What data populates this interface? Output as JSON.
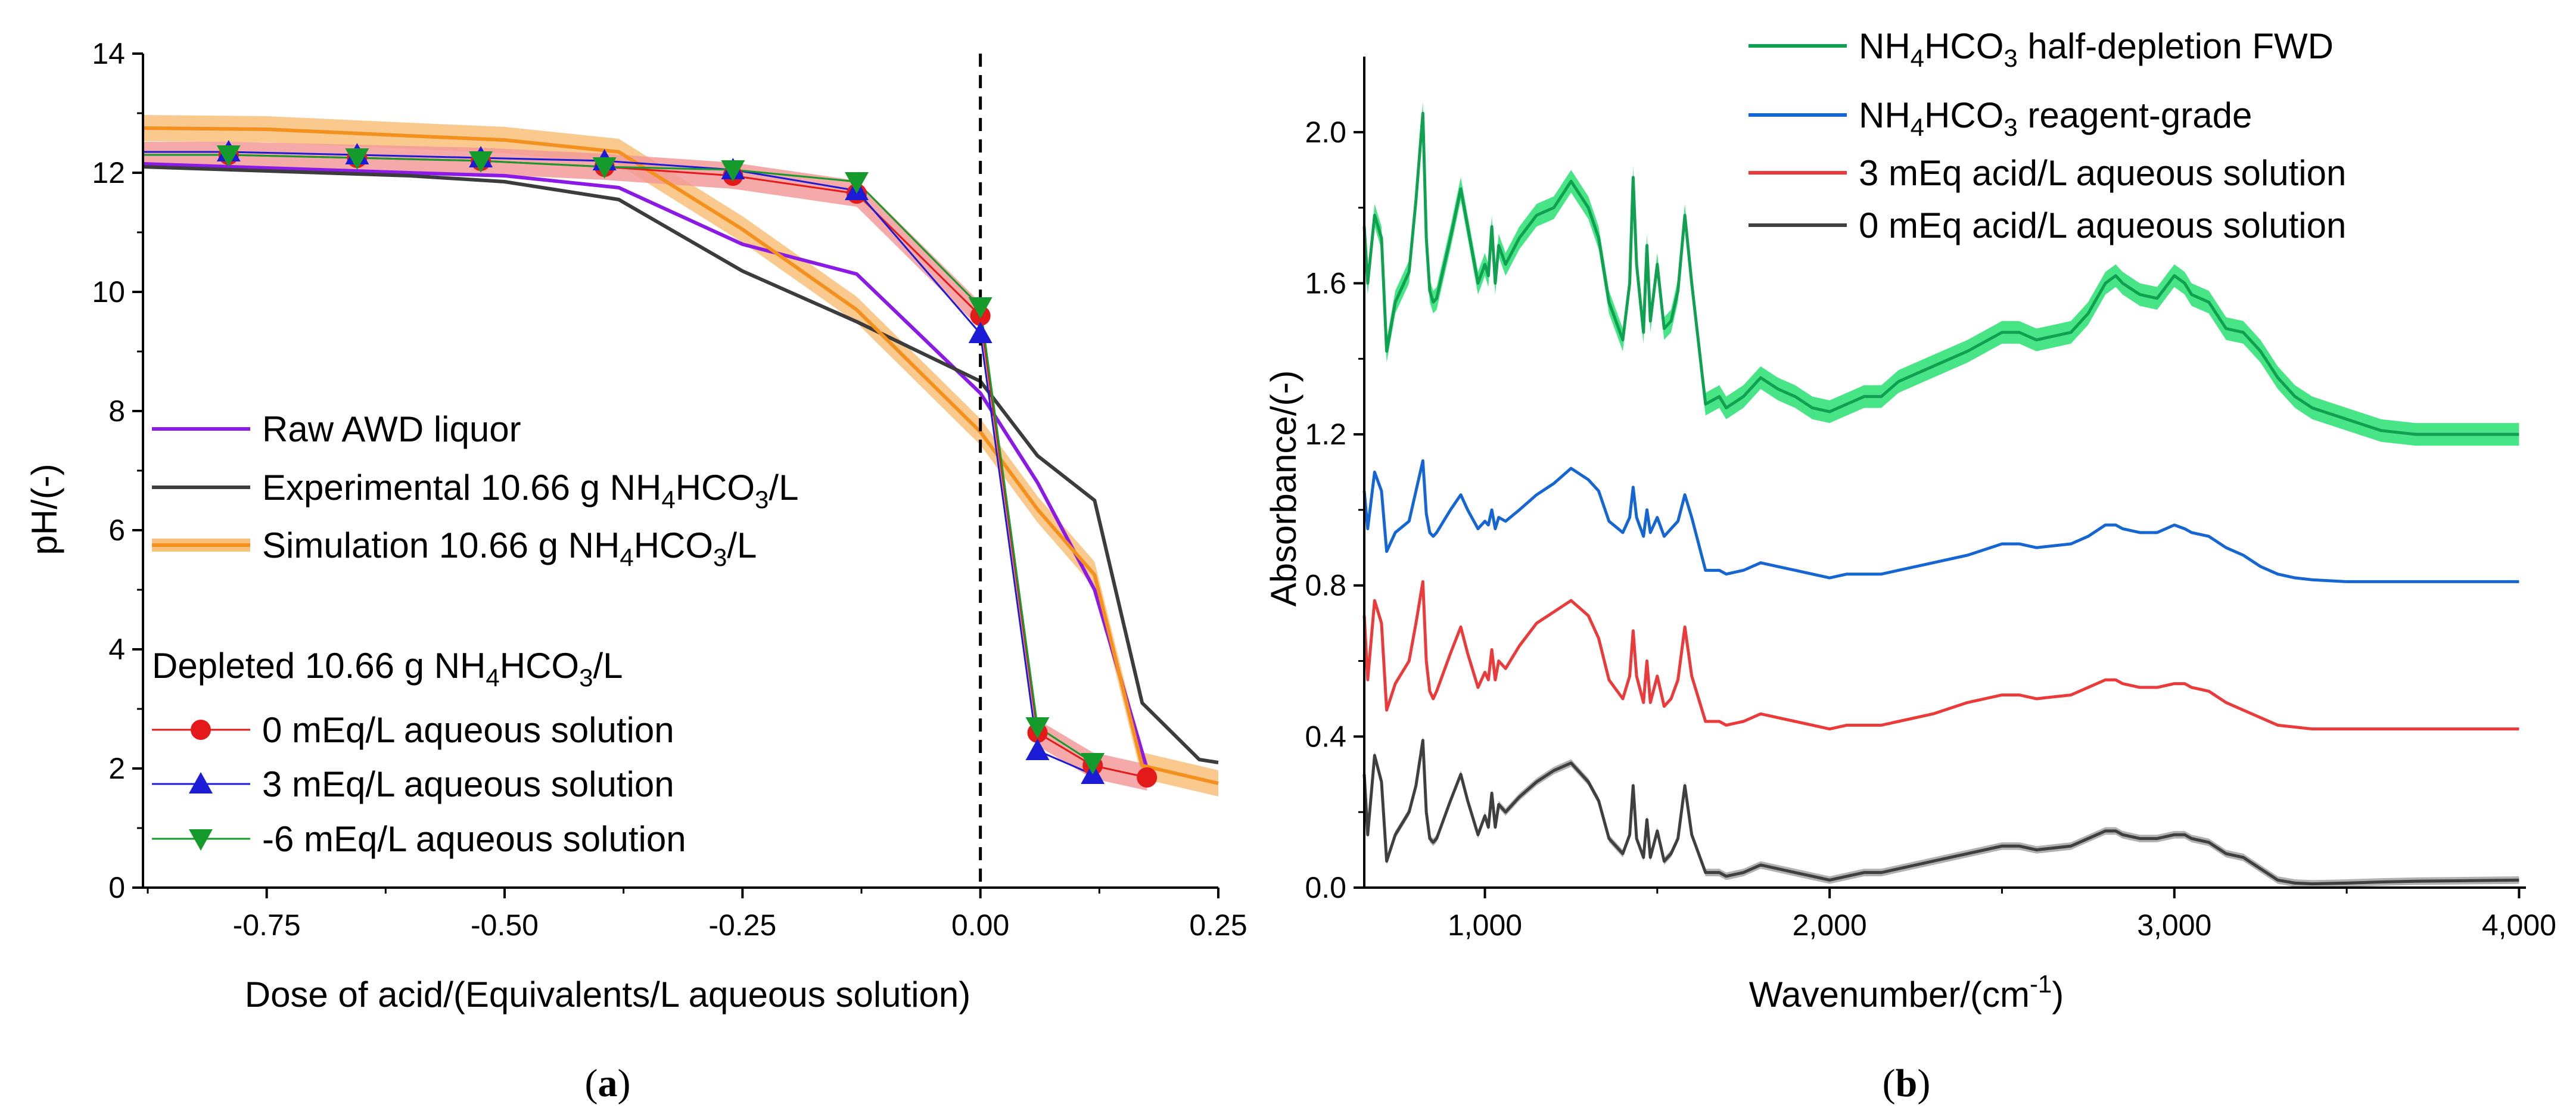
{
  "chart_data": [
    {
      "type": "line",
      "panel": "a",
      "xlabel": "Dose of acid/(Equivalents/L aqueous solution)",
      "ylabel": "pH/(-)",
      "xlim": [
        -0.88,
        0.25
      ],
      "ylim": [
        0,
        14
      ],
      "xticks": [
        -0.75,
        -0.5,
        -0.25,
        0.0,
        0.25
      ],
      "xtick_labels": [
        "-0.75",
        "-0.50",
        "-0.25",
        "0.00",
        "0.25"
      ],
      "yticks": [
        0,
        2,
        4,
        6,
        8,
        10,
        12,
        14
      ],
      "ytick_labels": [
        "0",
        "2",
        "4",
        "6",
        "8",
        "10",
        "12",
        "14"
      ],
      "vertical_reference_line": {
        "x": 0.0,
        "style": "dashed"
      },
      "grid": false,
      "series": [
        {
          "name": "Raw AWD liquor",
          "color": "#8b1ae6",
          "marker": "none",
          "x": [
            -0.88,
            -0.6,
            -0.5,
            -0.38,
            -0.25,
            -0.13,
            0.0,
            0.06,
            0.12,
            0.175
          ],
          "y": [
            12.15,
            12.0,
            11.95,
            11.75,
            10.8,
            10.3,
            8.3,
            6.8,
            5.0,
            2.0
          ]
        },
        {
          "name": "Experimental 10.66 g NH4HCO3/L",
          "color": "#3c3c3c",
          "marker": "none",
          "x": [
            -0.88,
            -0.6,
            -0.5,
            -0.38,
            -0.25,
            -0.13,
            0.0,
            0.06,
            0.12,
            0.17,
            0.23,
            0.25
          ],
          "y": [
            12.1,
            11.95,
            11.85,
            11.55,
            10.35,
            9.5,
            8.5,
            7.25,
            6.5,
            3.1,
            2.15,
            2.1
          ]
        },
        {
          "name": "Simulation 10.66 g NH4HCO3/L",
          "color": "#f4901e",
          "marker": "none",
          "band": 0.22,
          "x": [
            -0.88,
            -0.75,
            -0.6,
            -0.5,
            -0.38,
            -0.25,
            -0.13,
            0.0,
            0.06,
            0.12,
            0.17,
            0.25
          ],
          "y": [
            12.75,
            12.73,
            12.62,
            12.55,
            12.35,
            11.05,
            9.7,
            7.65,
            6.35,
            5.25,
            2.05,
            1.75
          ]
        },
        {
          "name": "0 mEq/L aqueous solution",
          "color": "#e41a1a",
          "marker": "circle",
          "band": 0.22,
          "x": [
            -0.88,
            -0.79,
            -0.655,
            -0.525,
            -0.395,
            -0.26,
            -0.13,
            0.0,
            0.06,
            0.118,
            0.175
          ],
          "y": [
            12.3,
            12.3,
            12.25,
            12.2,
            12.1,
            11.95,
            11.65,
            9.6,
            2.6,
            2.05,
            1.85
          ]
        },
        {
          "name": "3 mEq/L aqueous solution",
          "color": "#1c1cd6",
          "marker": "triangle-up",
          "x": [
            -0.88,
            -0.79,
            -0.655,
            -0.525,
            -0.395,
            -0.26,
            -0.13,
            0.0,
            0.06,
            0.118
          ],
          "y": [
            12.35,
            12.35,
            12.3,
            12.25,
            12.2,
            12.05,
            11.7,
            9.3,
            2.3,
            1.9
          ]
        },
        {
          "name": "-6 mEq/L aqueous solution",
          "color": "#159a2c",
          "marker": "triangle-down",
          "x": [
            -0.88,
            -0.79,
            -0.655,
            -0.525,
            -0.395,
            -0.26,
            -0.13,
            0.0,
            0.06,
            0.118
          ],
          "y": [
            12.3,
            12.3,
            12.25,
            12.2,
            12.1,
            12.05,
            11.85,
            9.75,
            2.7,
            2.1
          ]
        }
      ],
      "legend": {
        "placement": "center-left",
        "group_title": "Depleted 10.66 g NH4HCO3/L"
      }
    },
    {
      "type": "line",
      "panel": "b",
      "xlabel": "Wavenumber/(cm-1)",
      "ylabel": "Absorbance/(-)",
      "xlim": [
        650,
        4020
      ],
      "ylim": [
        0,
        2.2
      ],
      "xticks": [
        1000,
        2000,
        3000,
        4000
      ],
      "xtick_labels": [
        "1,000",
        "2,000",
        "3,000",
        "4,000"
      ],
      "yticks": [
        0.0,
        0.4,
        0.8,
        1.2,
        1.6,
        2.0
      ],
      "ytick_labels": [
        "0.0",
        "0.4",
        "0.8",
        "1.2",
        "1.6",
        "2.0"
      ],
      "grid": false,
      "x": [
        650,
        660,
        680,
        700,
        715,
        740,
        780,
        800,
        820,
        830,
        840,
        850,
        860,
        900,
        930,
        950,
        980,
        1000,
        1010,
        1020,
        1030,
        1040,
        1060,
        1100,
        1150,
        1200,
        1250,
        1300,
        1330,
        1360,
        1400,
        1420,
        1430,
        1440,
        1460,
        1470,
        1480,
        1500,
        1520,
        1540,
        1560,
        1580,
        1600,
        1640,
        1680,
        1700,
        1750,
        1800,
        1850,
        1900,
        1950,
        2000,
        2050,
        2100,
        2150,
        2200,
        2300,
        2400,
        2500,
        2550,
        2600,
        2700,
        2750,
        2800,
        2830,
        2850,
        2900,
        2950,
        3000,
        3030,
        3050,
        3100,
        3150,
        3200,
        3250,
        3300,
        3350,
        3400,
        3500,
        3600,
        3700,
        3800,
        3900,
        4000
      ],
      "series": [
        {
          "name": "NH4HCO3 half-depletion FWD",
          "color": "#0fa050",
          "band_color": "#34e27a",
          "y": [
            1.75,
            1.6,
            1.78,
            1.72,
            1.42,
            1.55,
            1.63,
            1.82,
            2.05,
            1.72,
            1.58,
            1.55,
            1.56,
            1.72,
            1.85,
            1.75,
            1.6,
            1.65,
            1.62,
            1.75,
            1.6,
            1.7,
            1.65,
            1.72,
            1.78,
            1.8,
            1.87,
            1.8,
            1.72,
            1.55,
            1.45,
            1.6,
            1.88,
            1.65,
            1.47,
            1.7,
            1.5,
            1.65,
            1.48,
            1.5,
            1.58,
            1.78,
            1.6,
            1.28,
            1.3,
            1.27,
            1.3,
            1.35,
            1.32,
            1.3,
            1.27,
            1.26,
            1.28,
            1.3,
            1.3,
            1.34,
            1.38,
            1.42,
            1.47,
            1.47,
            1.45,
            1.47,
            1.52,
            1.6,
            1.62,
            1.6,
            1.57,
            1.56,
            1.62,
            1.6,
            1.57,
            1.55,
            1.48,
            1.47,
            1.42,
            1.35,
            1.3,
            1.27,
            1.24,
            1.21,
            1.2,
            1.2,
            1.2,
            1.2
          ],
          "band": 0.03
        },
        {
          "name": "NH4HCO3 reagent-grade",
          "color": "#1566d2",
          "y": [
            1.05,
            0.95,
            1.1,
            1.05,
            0.89,
            0.94,
            0.97,
            1.05,
            1.13,
            0.99,
            0.94,
            0.93,
            0.94,
            1.0,
            1.04,
            1.0,
            0.95,
            0.97,
            0.96,
            1.0,
            0.95,
            0.98,
            0.97,
            1.0,
            1.04,
            1.07,
            1.11,
            1.08,
            1.05,
            0.97,
            0.94,
            0.98,
            1.06,
            0.98,
            0.93,
            1.0,
            0.94,
            0.98,
            0.93,
            0.95,
            0.97,
            1.04,
            0.98,
            0.84,
            0.84,
            0.83,
            0.84,
            0.86,
            0.85,
            0.84,
            0.83,
            0.82,
            0.83,
            0.83,
            0.83,
            0.84,
            0.86,
            0.88,
            0.91,
            0.91,
            0.9,
            0.91,
            0.93,
            0.96,
            0.96,
            0.95,
            0.94,
            0.94,
            0.96,
            0.95,
            0.94,
            0.93,
            0.9,
            0.88,
            0.85,
            0.83,
            0.82,
            0.815,
            0.81,
            0.81,
            0.81,
            0.81,
            0.81,
            0.81
          ]
        },
        {
          "name": "3 mEq acid/L aqueous solution",
          "color": "#ea3a3a",
          "y": [
            0.72,
            0.55,
            0.76,
            0.7,
            0.47,
            0.54,
            0.6,
            0.7,
            0.81,
            0.6,
            0.52,
            0.5,
            0.52,
            0.62,
            0.69,
            0.62,
            0.53,
            0.57,
            0.55,
            0.63,
            0.55,
            0.6,
            0.58,
            0.64,
            0.7,
            0.73,
            0.76,
            0.72,
            0.66,
            0.55,
            0.5,
            0.56,
            0.68,
            0.56,
            0.49,
            0.6,
            0.49,
            0.56,
            0.48,
            0.5,
            0.55,
            0.69,
            0.56,
            0.44,
            0.44,
            0.43,
            0.44,
            0.46,
            0.45,
            0.44,
            0.43,
            0.42,
            0.43,
            0.43,
            0.43,
            0.44,
            0.46,
            0.49,
            0.51,
            0.51,
            0.5,
            0.51,
            0.53,
            0.55,
            0.55,
            0.54,
            0.53,
            0.53,
            0.54,
            0.54,
            0.53,
            0.52,
            0.49,
            0.47,
            0.45,
            0.43,
            0.425,
            0.42,
            0.42,
            0.42,
            0.42,
            0.42,
            0.42,
            0.42
          ]
        },
        {
          "name": "0 mEq acid/L aqueous solution",
          "color": "#3f3f3f",
          "band_color": "#aaaaaa",
          "y": [
            0.3,
            0.14,
            0.35,
            0.28,
            0.07,
            0.14,
            0.2,
            0.27,
            0.39,
            0.2,
            0.13,
            0.12,
            0.13,
            0.23,
            0.3,
            0.23,
            0.14,
            0.19,
            0.16,
            0.25,
            0.16,
            0.22,
            0.2,
            0.24,
            0.28,
            0.31,
            0.33,
            0.28,
            0.23,
            0.13,
            0.09,
            0.14,
            0.27,
            0.13,
            0.08,
            0.18,
            0.08,
            0.15,
            0.07,
            0.09,
            0.13,
            0.27,
            0.14,
            0.04,
            0.04,
            0.03,
            0.04,
            0.06,
            0.05,
            0.04,
            0.03,
            0.02,
            0.03,
            0.04,
            0.04,
            0.05,
            0.07,
            0.09,
            0.11,
            0.11,
            0.1,
            0.11,
            0.13,
            0.15,
            0.15,
            0.14,
            0.13,
            0.13,
            0.14,
            0.14,
            0.13,
            0.12,
            0.09,
            0.08,
            0.05,
            0.02,
            0.012,
            0.01,
            0.012,
            0.015,
            0.017,
            0.018,
            0.019,
            0.02
          ],
          "band": 0.01
        }
      ],
      "legend": {
        "placement": "top-right"
      }
    }
  ],
  "legend_a": {
    "raw": "Raw AWD liquor",
    "exp_pre": "Experimental 10.66 g NH",
    "exp_sub": "4",
    "exp_post": "HCO",
    "exp_sub2": "3",
    "exp_tail": "/L",
    "sim_pre": "Simulation 10.66 g NH",
    "sim_sub": "4",
    "sim_post": "HCO",
    "sim_sub2": "3",
    "sim_tail": "/L",
    "group_pre": "Depleted 10.66 g NH",
    "group_sub": "4",
    "group_post": "HCO",
    "group_sub2": "3",
    "group_tail": "/L",
    "s0": "0 mEq/L aqueous solution",
    "s3": "3 mEq/L aqueous solution",
    "sm6": "-6 mEq/L aqueous solution"
  },
  "legend_b": {
    "fwd_pre": "NH",
    "fwd_sub": "4",
    "fwd_mid": "HCO",
    "fwd_sub2": "3",
    "fwd_tail": " half-depletion FWD",
    "rg_pre": "NH",
    "rg_sub": "4",
    "rg_mid": "HCO",
    "rg_sub2": "3",
    "rg_tail": " reagent-grade",
    "acid3": "3 mEq acid/L aqueous solution",
    "acid0": "0 mEq acid/L aqueous solution"
  },
  "axes_b": {
    "xlabel_pre": "Wavenumber/(cm",
    "xlabel_sup": "-1",
    "xlabel_post": ")"
  },
  "captions": {
    "a_open": "(",
    "a_letter": "a",
    "a_close": ")",
    "b_open": "(",
    "b_letter": "b",
    "b_close": ")"
  }
}
